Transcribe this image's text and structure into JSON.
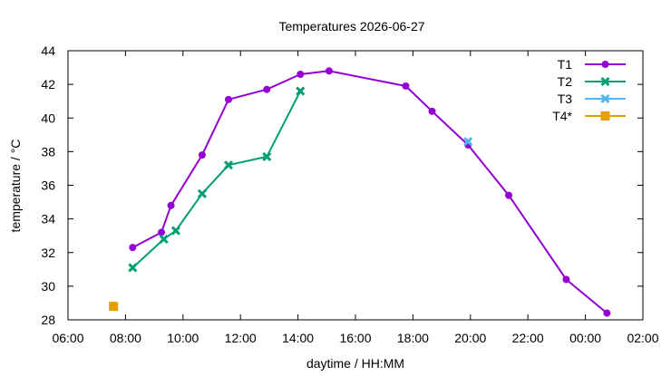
{
  "chart_data": {
    "type": "line",
    "title": "Temperatures 2026-06-27",
    "xlabel": "daytime / HH:MM",
    "ylabel": "temperature / °C",
    "xlim": [
      "06:00",
      "26:00"
    ],
    "ylim": [
      28,
      44
    ],
    "x_ticks": [
      "06:00",
      "08:00",
      "10:00",
      "12:00",
      "14:00",
      "16:00",
      "18:00",
      "20:00",
      "22:00",
      "00:00",
      "02:00"
    ],
    "y_ticks": [
      28,
      30,
      32,
      34,
      36,
      38,
      40,
      42,
      44
    ],
    "grid": false,
    "legend_position": "top-right",
    "series": [
      {
        "name": "T1",
        "color": "#9400d3",
        "marker": "circle",
        "x": [
          "08:15",
          "09:15",
          "09:35",
          "10:40",
          "11:35",
          "12:55",
          "14:05",
          "15:05",
          "17:45",
          "18:40",
          "19:55",
          "21:20",
          "23:20",
          "24:45"
        ],
        "y": [
          32.3,
          33.2,
          34.8,
          37.8,
          41.1,
          41.7,
          42.6,
          42.8,
          41.9,
          40.4,
          38.4,
          35.4,
          30.4,
          28.4
        ]
      },
      {
        "name": "T2",
        "color": "#009e73",
        "marker": "x",
        "x": [
          "08:15",
          "09:20",
          "09:45",
          "10:40",
          "11:35",
          "12:55",
          "14:05"
        ],
        "y": [
          31.1,
          32.8,
          33.3,
          35.5,
          37.2,
          37.7,
          41.6
        ]
      },
      {
        "name": "T3",
        "color": "#56b4e9",
        "marker": "x",
        "x": [
          "19:55"
        ],
        "y": [
          38.6
        ]
      },
      {
        "name": "T4*",
        "color": "#e69f00",
        "marker": "square",
        "x": [
          "07:35"
        ],
        "y": [
          28.8
        ]
      }
    ]
  }
}
